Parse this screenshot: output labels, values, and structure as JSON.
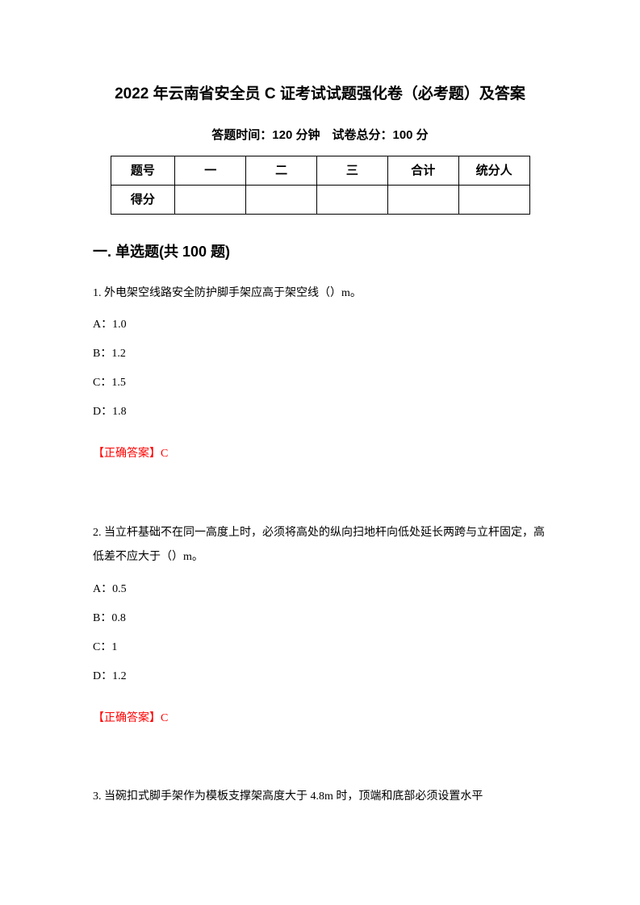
{
  "title": "2022 年云南省安全员 C 证考试试题强化卷（必考题）及答案",
  "exam_info": "答题时间：120 分钟　试卷总分：100 分",
  "score_table": {
    "row1": {
      "label": "题号",
      "col1": "一",
      "col2": "二",
      "col3": "三",
      "col4": "合计",
      "col5": "统分人"
    },
    "row2": {
      "label": "得分",
      "col1": "",
      "col2": "",
      "col3": "",
      "col4": "",
      "col5": ""
    }
  },
  "section_heading": "一. 单选题(共 100 题)",
  "q1": {
    "text": "1. 外电架空线路安全防护脚手架应高于架空线（）m。",
    "optA": "A：1.0",
    "optB": "B：1.2",
    "optC": "C：1.5",
    "optD": "D：1.8",
    "answer": "【正确答案】C"
  },
  "q2": {
    "text": "2. 当立杆基础不在同一高度上时，必须将高处的纵向扫地杆向低处延长两跨与立杆固定，高低差不应大于（）m。",
    "optA": "A：0.5",
    "optB": "B：0.8",
    "optC": "C：1",
    "optD": "D：1.2",
    "answer": "【正确答案】C"
  },
  "q3": {
    "text": "3. 当碗扣式脚手架作为模板支撑架高度大于 4.8m 时，顶端和底部必须设置水平"
  },
  "colors": {
    "text": "#000000",
    "answer": "#ff0000",
    "background": "#ffffff",
    "border": "#000000"
  }
}
